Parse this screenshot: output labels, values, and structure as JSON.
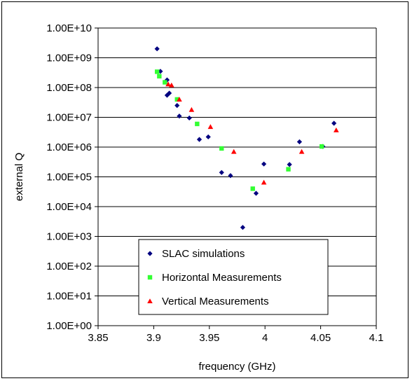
{
  "chart_data": {
    "type": "scatter",
    "xlabel": "frequency (GHz)",
    "ylabel": "external Q",
    "xlim": [
      3.85,
      4.1
    ],
    "ylim": [
      1,
      10000000000
    ],
    "yscale": "log",
    "x_ticks": [
      "3.85",
      "3.9",
      "3.95",
      "4",
      "4.05",
      "4.1"
    ],
    "y_ticks": [
      "1.00E+00",
      "1.00E+01",
      "1.00E+02",
      "1.00E+03",
      "1.00E+04",
      "1.00E+05",
      "1.00E+06",
      "1.00E+07",
      "1.00E+08",
      "1.00E+09",
      "1.00E+10"
    ],
    "grid": "horizontal",
    "legend_position": "bottom-center",
    "series": [
      {
        "name": "SLAC simulations",
        "marker": "diamond",
        "color": "#000080",
        "points": [
          [
            3.903,
            2000000000
          ],
          [
            3.906,
            350000000
          ],
          [
            3.912,
            180000000
          ],
          [
            3.912,
            55000000
          ],
          [
            3.914,
            65000000
          ],
          [
            3.921,
            25000000
          ],
          [
            3.923,
            11000000
          ],
          [
            3.932,
            9500000
          ],
          [
            3.941,
            1800000
          ],
          [
            3.949,
            2200000
          ],
          [
            3.961,
            140000
          ],
          [
            3.969,
            110000
          ],
          [
            3.98,
            2000
          ],
          [
            3.992,
            28000
          ],
          [
            3.999,
            270000
          ],
          [
            4.022,
            260000
          ],
          [
            4.031,
            1500000
          ],
          [
            4.052,
            1050000
          ],
          [
            4.062,
            6300000
          ]
        ]
      },
      {
        "name": "Horizontal Measurements",
        "marker": "square",
        "color": "#33ff33",
        "points": [
          [
            3.903,
            340000000
          ],
          [
            3.905,
            240000000
          ],
          [
            3.91,
            150000000
          ],
          [
            3.921,
            40000000
          ],
          [
            3.939,
            6000000
          ],
          [
            3.961,
            900000
          ],
          [
            3.989,
            40000
          ],
          [
            4.021,
            180000
          ],
          [
            4.051,
            1050000
          ]
        ]
      },
      {
        "name": "Vertical Measurements",
        "marker": "triangle",
        "color": "#ff0000",
        "points": [
          [
            3.913,
            130000000
          ],
          [
            3.916,
            120000000
          ],
          [
            3.923,
            40000000
          ],
          [
            3.934,
            18000000
          ],
          [
            3.951,
            4800000
          ],
          [
            3.972,
            700000
          ],
          [
            3.999,
            65000
          ],
          [
            4.033,
            700000
          ],
          [
            4.064,
            3700000
          ]
        ]
      }
    ]
  }
}
